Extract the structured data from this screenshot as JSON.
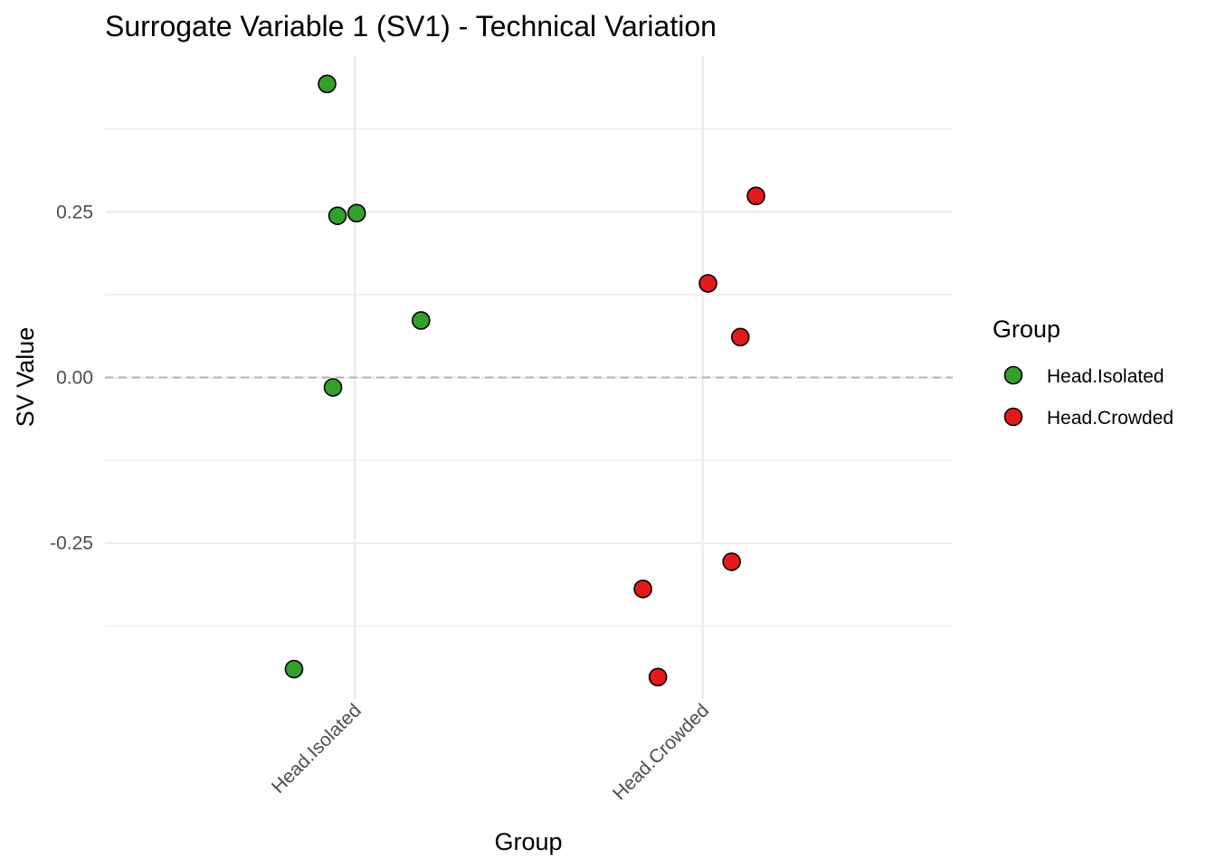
{
  "chart_data": {
    "type": "scatter",
    "title": "Surrogate Variable 1 (SV1) - Technical Variation",
    "xlabel": "Group",
    "ylabel": "SV Value",
    "categories": [
      "Head.Isolated",
      "Head.Crowded"
    ],
    "y_ticks": [
      -0.25,
      0.0,
      0.25
    ],
    "y_tick_labels": [
      "-0.25",
      "0.00",
      "0.25"
    ],
    "ylim": [
      -0.485,
      0.485
    ],
    "reference_line": {
      "y": 0.0,
      "style": "dashed"
    },
    "legend": {
      "title": "Group",
      "position": "right",
      "entries": [
        {
          "label": "Head.Isolated",
          "color": "#33A02C"
        },
        {
          "label": "Head.Crowded",
          "color": "#E31A1C"
        }
      ]
    },
    "series": [
      {
        "name": "Head.Isolated",
        "color": "#33A02C",
        "points": [
          {
            "category": "Head.Isolated",
            "jitter": -0.08,
            "value": 0.443
          },
          {
            "category": "Head.Isolated",
            "jitter": -0.05,
            "value": 0.244
          },
          {
            "category": "Head.Isolated",
            "jitter": 0.005,
            "value": 0.248
          },
          {
            "category": "Head.Isolated",
            "jitter": 0.19,
            "value": 0.086
          },
          {
            "category": "Head.Isolated",
            "jitter": -0.063,
            "value": -0.015
          },
          {
            "category": "Head.Isolated",
            "jitter": -0.175,
            "value": -0.44
          }
        ]
      },
      {
        "name": "Head.Crowded",
        "color": "#E31A1C",
        "points": [
          {
            "category": "Head.Crowded",
            "jitter": 0.153,
            "value": 0.274
          },
          {
            "category": "Head.Crowded",
            "jitter": 0.015,
            "value": 0.142
          },
          {
            "category": "Head.Crowded",
            "jitter": 0.108,
            "value": 0.061
          },
          {
            "category": "Head.Crowded",
            "jitter": 0.083,
            "value": -0.278
          },
          {
            "category": "Head.Crowded",
            "jitter": -0.172,
            "value": -0.319
          },
          {
            "category": "Head.Crowded",
            "jitter": -0.129,
            "value": -0.452
          }
        ]
      }
    ]
  }
}
